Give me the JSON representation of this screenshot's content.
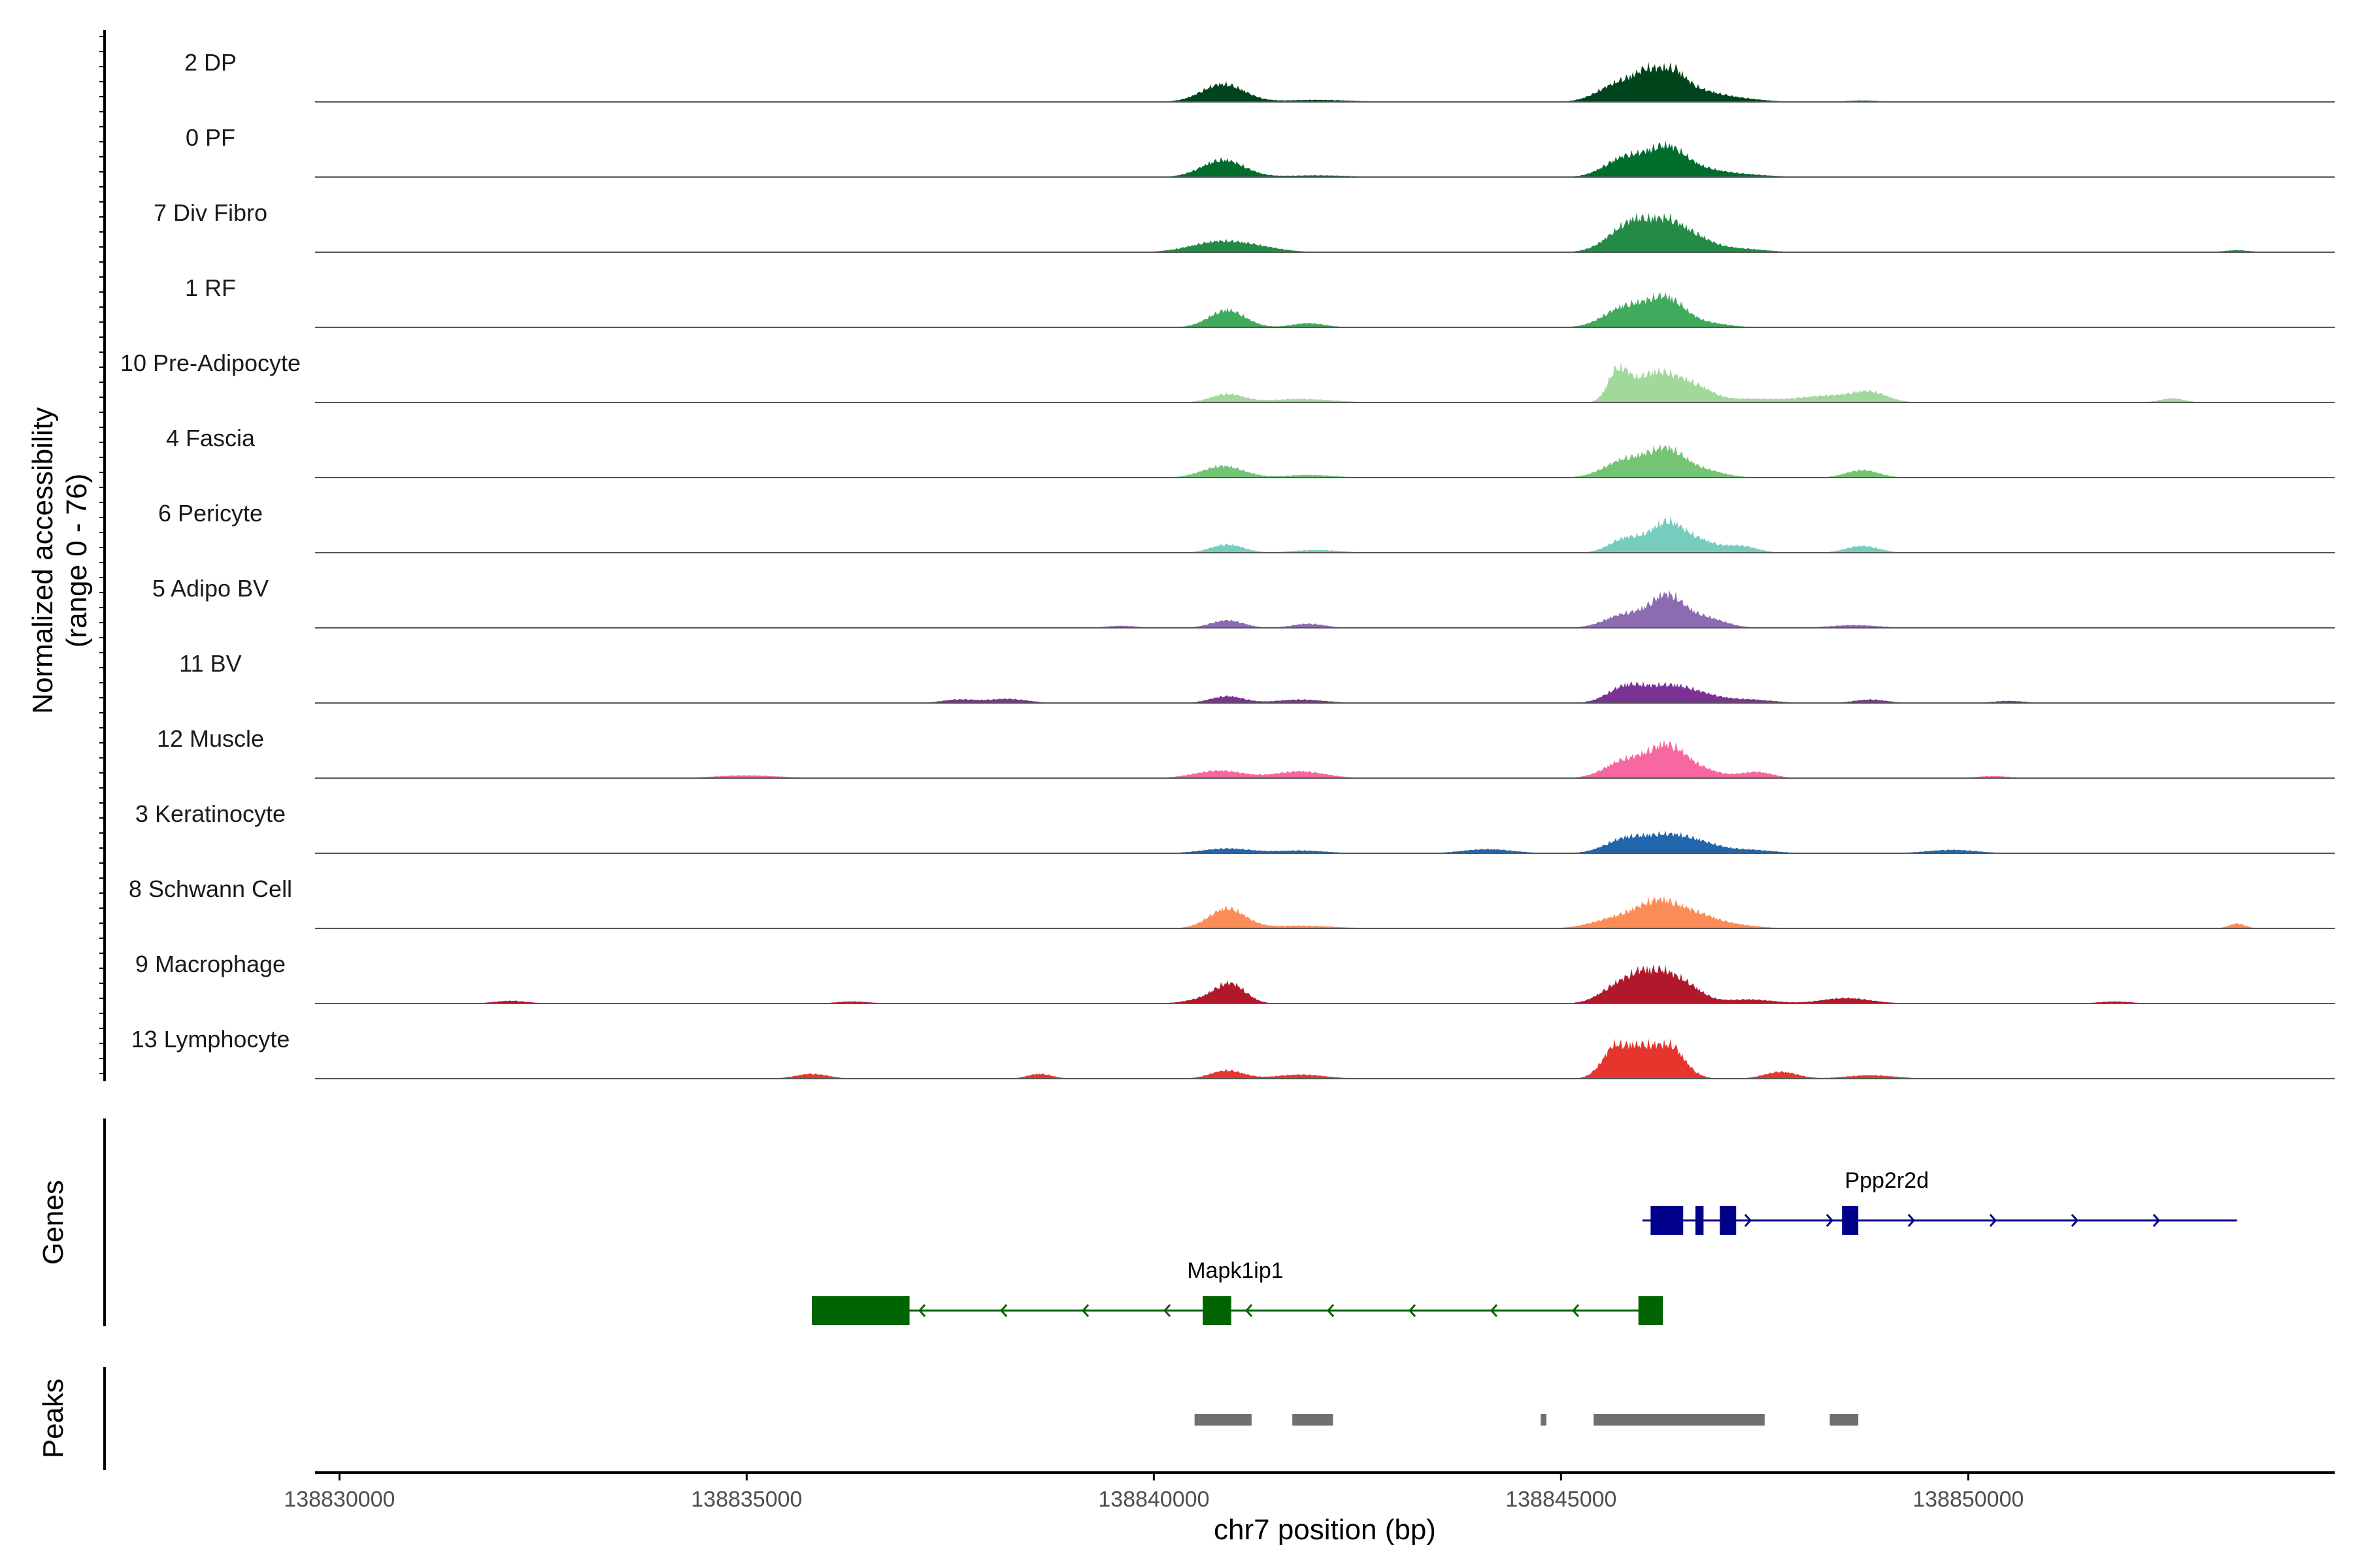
{
  "chart_data": {
    "type": "coverage-track",
    "xlabel": "chr7 position (bp)",
    "ylabel": "Normalized accessibility",
    "ylabel_range": "(range 0 - 76)",
    "y_range": [
      0,
      76
    ],
    "x_range": [
      138829700,
      138854500
    ],
    "x_ticks": [
      138830000,
      138835000,
      138840000,
      138845000,
      138850000
    ],
    "x_tick_labels": [
      "138830000",
      "138835000",
      "138840000",
      "138845000",
      "138850000"
    ],
    "panel_labels": {
      "genes": "Genes",
      "peaks": "Peaks"
    },
    "tracks": [
      {
        "name": "2 DP",
        "color": "#00441b",
        "peaks": [
          [
            138840850,
            52,
            260
          ],
          [
            138842000,
            6,
            400
          ],
          [
            138845700,
            50,
            250
          ],
          [
            138846050,
            44,
            200
          ],
          [
            138846300,
            78,
            200
          ],
          [
            138846650,
            30,
            300
          ],
          [
            138847200,
            8,
            300
          ],
          [
            138848700,
            4,
            200
          ]
        ]
      },
      {
        "name": "0 PF",
        "color": "#006d2c",
        "peaks": [
          [
            138840850,
            50,
            260
          ],
          [
            138842000,
            5,
            400
          ],
          [
            138845800,
            58,
            250
          ],
          [
            138846300,
            76,
            220
          ],
          [
            138846700,
            22,
            300
          ],
          [
            138847300,
            6,
            300
          ]
        ]
      },
      {
        "name": "7 Div Fibro",
        "color": "#238b45",
        "peaks": [
          [
            138840800,
            30,
            350
          ],
          [
            138841300,
            10,
            300
          ],
          [
            138845800,
            64,
            250
          ],
          [
            138846200,
            80,
            250
          ],
          [
            138846600,
            40,
            250
          ],
          [
            138847200,
            10,
            300
          ],
          [
            138853300,
            6,
            150
          ]
        ]
      },
      {
        "name": "1 RF",
        "color": "#41ab5d",
        "peaks": [
          [
            138840900,
            50,
            220
          ],
          [
            138841900,
            12,
            200
          ],
          [
            138845800,
            60,
            260
          ],
          [
            138846300,
            80,
            220
          ],
          [
            138846800,
            12,
            250
          ]
        ]
      },
      {
        "name": "10 Pre-Adipocyte",
        "color": "#a1d99b",
        "peaks": [
          [
            138840900,
            24,
            200
          ],
          [
            138841800,
            10,
            400
          ],
          [
            138845700,
            90,
            120
          ],
          [
            138846000,
            40,
            200
          ],
          [
            138846300,
            70,
            250
          ],
          [
            138846700,
            30,
            200
          ],
          [
            138847300,
            10,
            300
          ],
          [
            138848300,
            20,
            400
          ],
          [
            138848800,
            24,
            200
          ],
          [
            138852500,
            12,
            150
          ]
        ]
      },
      {
        "name": "4 Fascia",
        "color": "#74c476",
        "peaks": [
          [
            138840850,
            34,
            250
          ],
          [
            138841900,
            8,
            300
          ],
          [
            138845800,
            52,
            260
          ],
          [
            138846300,
            76,
            220
          ],
          [
            138846750,
            20,
            250
          ],
          [
            138848700,
            22,
            200
          ]
        ]
      },
      {
        "name": "6 Pericyte",
        "color": "#76cdbd",
        "peaks": [
          [
            138840900,
            24,
            200
          ],
          [
            138842000,
            8,
            300
          ],
          [
            138845800,
            42,
            200
          ],
          [
            138846300,
            86,
            200
          ],
          [
            138846700,
            32,
            200
          ],
          [
            138847200,
            20,
            200
          ],
          [
            138848700,
            20,
            200
          ]
        ]
      },
      {
        "name": "5 Adipo BV",
        "color": "#8c6bb1",
        "peaks": [
          [
            138840900,
            22,
            200
          ],
          [
            138841900,
            12,
            200
          ],
          [
            138845800,
            40,
            250
          ],
          [
            138846300,
            88,
            200
          ],
          [
            138846750,
            30,
            250
          ],
          [
            138848600,
            8,
            300
          ],
          [
            138839600,
            6,
            200
          ]
        ]
      },
      {
        "name": "11 BV",
        "color": "#7b3294",
        "peaks": [
          [
            138837600,
            10,
            200
          ],
          [
            138838200,
            12,
            250
          ],
          [
            138840900,
            20,
            200
          ],
          [
            138841800,
            10,
            300
          ],
          [
            138845800,
            48,
            220
          ],
          [
            138846300,
            44,
            250
          ],
          [
            138846700,
            22,
            250
          ],
          [
            138847300,
            10,
            300
          ],
          [
            138848800,
            10,
            200
          ],
          [
            138850500,
            6,
            200
          ]
        ]
      },
      {
        "name": "12 Muscle",
        "color": "#f768a1",
        "peaks": [
          [
            138835000,
            8,
            400
          ],
          [
            138840800,
            22,
            300
          ],
          [
            138841800,
            20,
            300
          ],
          [
            138845800,
            52,
            250
          ],
          [
            138846300,
            86,
            220
          ],
          [
            138846700,
            24,
            250
          ],
          [
            138847400,
            18,
            200
          ],
          [
            138850300,
            6,
            200
          ]
        ]
      },
      {
        "name": "3 Keratinocyte",
        "color": "#2166ac",
        "peaks": [
          [
            138840900,
            14,
            300
          ],
          [
            138841800,
            8,
            300
          ],
          [
            138844100,
            12,
            300
          ],
          [
            138845800,
            42,
            250
          ],
          [
            138846300,
            44,
            250
          ],
          [
            138846700,
            26,
            250
          ],
          [
            138847300,
            10,
            300
          ],
          [
            138849800,
            10,
            300
          ]
        ]
      },
      {
        "name": "8 Schwann Cell",
        "color": "#fc8d59",
        "peaks": [
          [
            138840900,
            58,
            220
          ],
          [
            138841800,
            8,
            400
          ],
          [
            138845700,
            30,
            300
          ],
          [
            138846200,
            70,
            250
          ],
          [
            138846650,
            34,
            250
          ],
          [
            138847100,
            10,
            300
          ],
          [
            138853300,
            14,
            100
          ]
        ]
      },
      {
        "name": "9 Macrophage",
        "color": "#b2182b",
        "peaks": [
          [
            138832100,
            8,
            200
          ],
          [
            138836300,
            6,
            200
          ],
          [
            138840700,
            16,
            250
          ],
          [
            138840950,
            50,
            180
          ],
          [
            138845700,
            48,
            220
          ],
          [
            138846100,
            88,
            220
          ],
          [
            138846500,
            54,
            220
          ],
          [
            138847300,
            12,
            300
          ],
          [
            138848500,
            16,
            300
          ],
          [
            138851800,
            6,
            200
          ]
        ]
      },
      {
        "name": "13 Lymphocyte",
        "color": "#e7352e",
        "peaks": [
          [
            138835800,
            14,
            200
          ],
          [
            138838600,
            14,
            150
          ],
          [
            138840900,
            24,
            200
          ],
          [
            138841800,
            12,
            300
          ],
          [
            138845600,
            50,
            150
          ],
          [
            138845800,
            92,
            150
          ],
          [
            138846100,
            40,
            150
          ],
          [
            138846300,
            100,
            200
          ],
          [
            138847700,
            20,
            200
          ],
          [
            138848800,
            10,
            300
          ]
        ]
      }
    ],
    "genes": [
      {
        "name": "Ppp2r2d",
        "strand": "+",
        "start": 138846000,
        "end": 138853300,
        "color": "#00008b",
        "exons": [
          [
            138846100,
            138846500
          ],
          [
            138846650,
            138846750
          ],
          [
            138846950,
            138847150
          ],
          [
            138848450,
            138848650
          ]
        ]
      },
      {
        "name": "Mapk1ip1",
        "strand": "-",
        "start": 138835800,
        "end": 138846250,
        "color": "#006400",
        "exons": [
          [
            138835800,
            138837000
          ],
          [
            138840600,
            138840950
          ],
          [
            138845950,
            138846250
          ]
        ]
      }
    ],
    "peaks_regions": [
      [
        138840500,
        138841200
      ],
      [
        138841700,
        138842200
      ],
      [
        138844750,
        138844820
      ],
      [
        138845400,
        138847500
      ],
      [
        138848300,
        138848650
      ]
    ]
  }
}
